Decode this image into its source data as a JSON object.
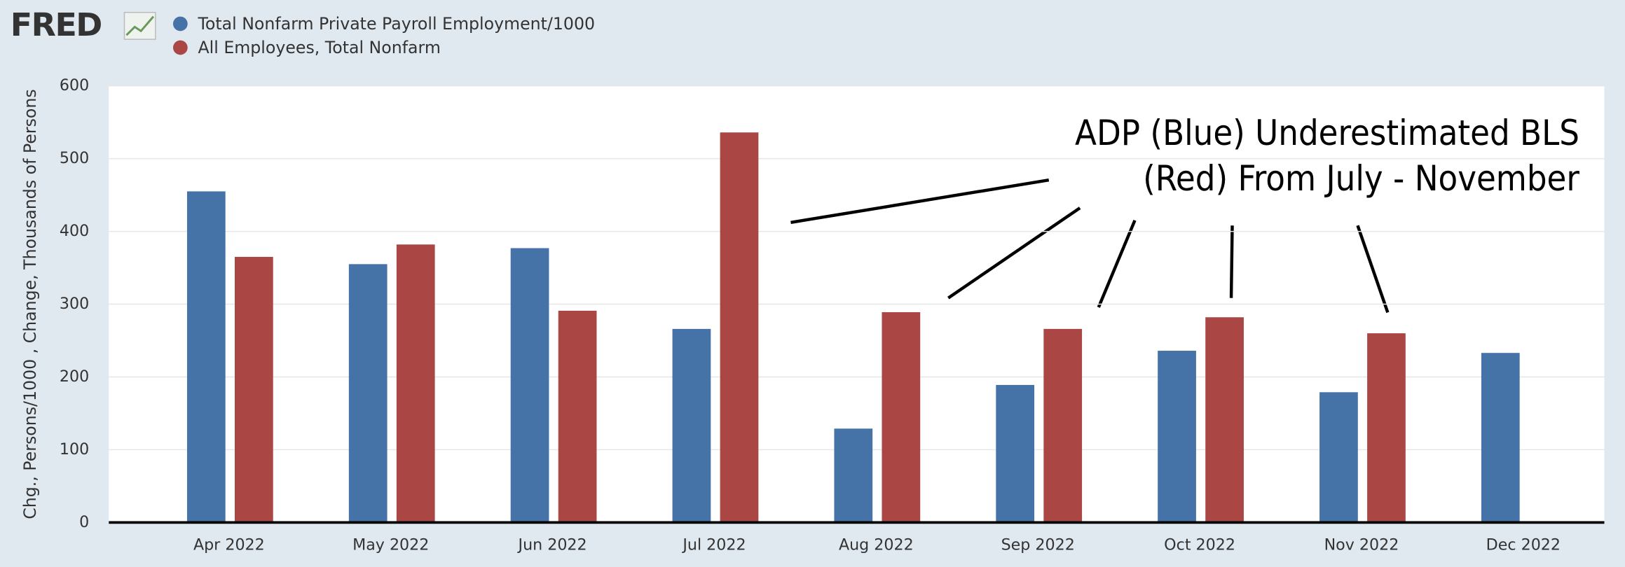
{
  "chart_data": {
    "type": "bar",
    "logo": "FRED",
    "ylabel": "Chg., Persons/1000 , Change, Thousands of Persons",
    "annotation": [
      "ADP (Blue) Underestimated BLS",
      "(Red) From July - November"
    ],
    "categories": [
      "Apr 2022",
      "May 2022",
      "Jun 2022",
      "Jul 2022",
      "Aug 2022",
      "Sep 2022",
      "Oct 2022",
      "Nov 2022",
      "Dec 2022"
    ],
    "series": [
      {
        "name": "Total Nonfarm Private Payroll Employment/1000",
        "color": "#4572a7",
        "values": [
          455,
          355,
          377,
          266,
          129,
          189,
          236,
          179,
          233
        ]
      },
      {
        "name": "All Employees, Total Nonfarm",
        "color": "#aa4643",
        "values": [
          365,
          382,
          291,
          536,
          289,
          266,
          282,
          260,
          null
        ]
      }
    ],
    "ylim": [
      0,
      600
    ],
    "yticks": [
      0,
      100,
      200,
      300,
      400,
      500,
      600
    ],
    "grid": true
  }
}
